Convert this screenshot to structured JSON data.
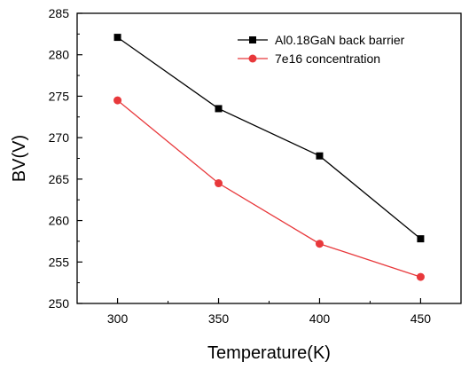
{
  "chart_data": {
    "type": "line",
    "xlabel": "Temperature(K)",
    "ylabel": "BV(V)",
    "xlim": [
      280,
      470
    ],
    "ylim": [
      250,
      285
    ],
    "x_ticks": [
      300,
      350,
      400,
      450
    ],
    "y_ticks": [
      250,
      255,
      260,
      265,
      270,
      275,
      280,
      285
    ],
    "x": [
      300,
      350,
      400,
      450
    ],
    "series": [
      {
        "name": "Al0.18GaN back barrier",
        "color": "#000000",
        "marker": "square",
        "values": [
          282.1,
          273.5,
          267.8,
          257.8
        ]
      },
      {
        "name": "7e16 concentration",
        "color": "#e8383b",
        "marker": "circle",
        "values": [
          274.5,
          264.5,
          257.2,
          253.2
        ]
      }
    ],
    "legend_position": "top-right",
    "grid": false
  }
}
